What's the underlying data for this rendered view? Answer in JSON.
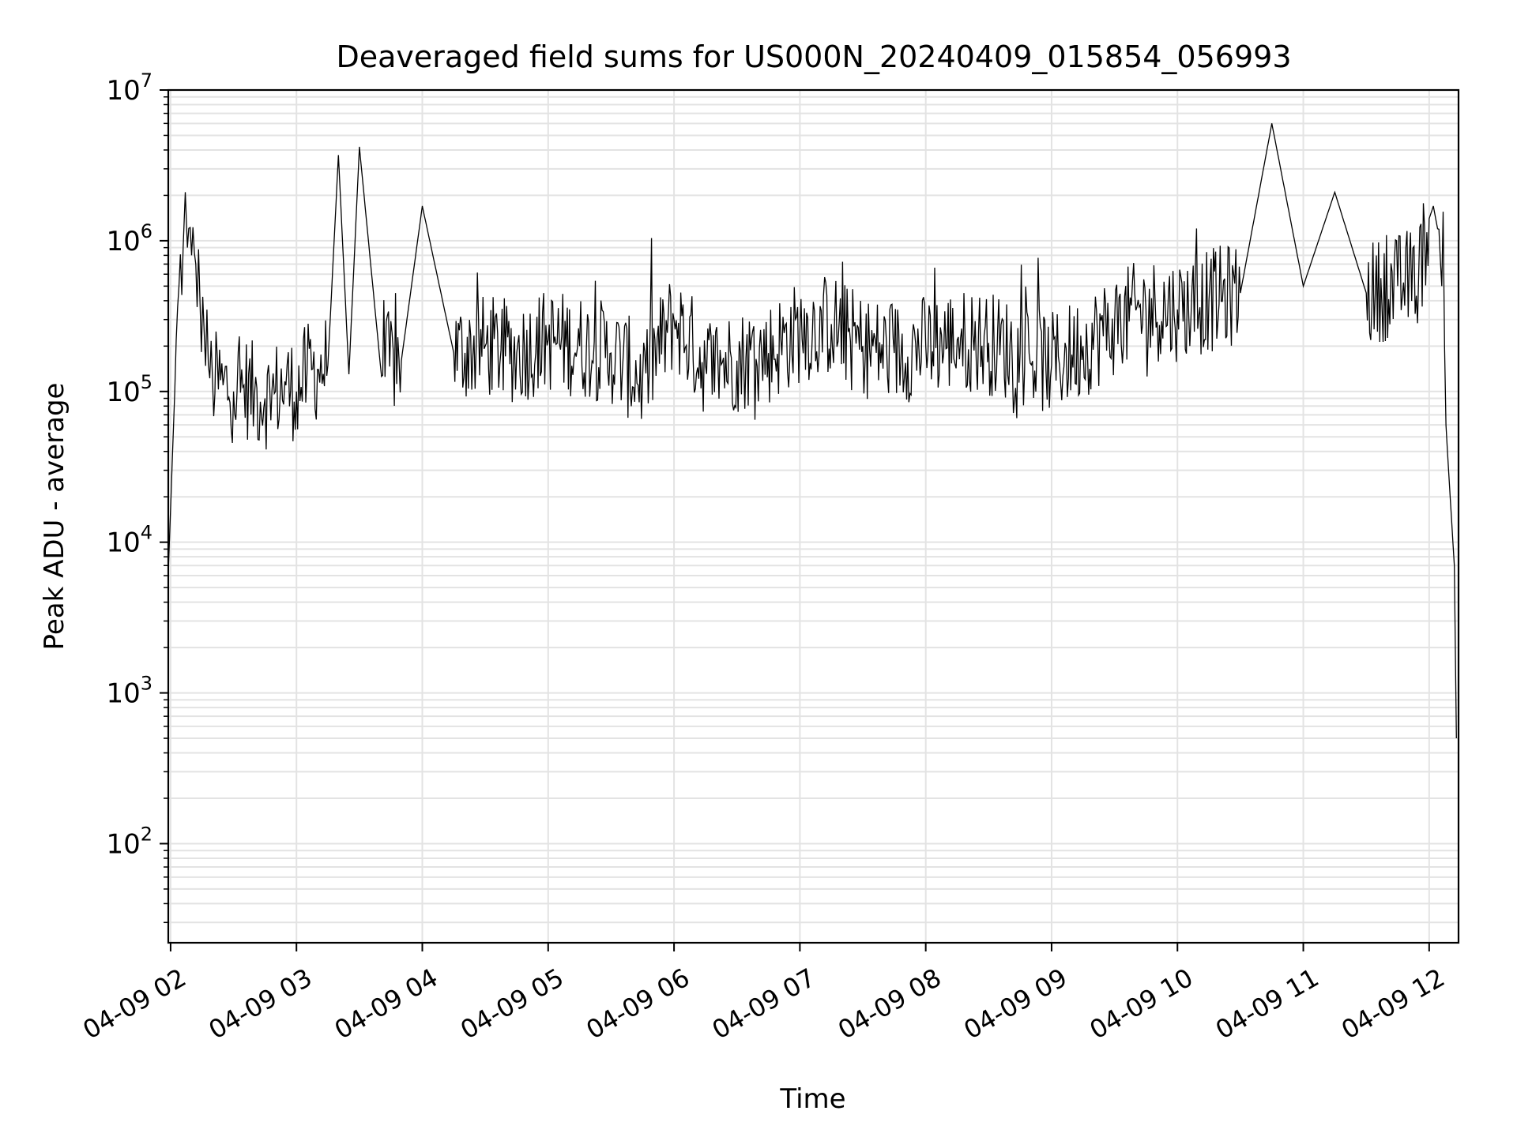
{
  "chart_data": {
    "type": "line",
    "title": "Deaveraged field sums for US000N_20240409_015854_056993",
    "xlabel": "Time",
    "ylabel": "Peak ADU - average",
    "xscale": "time",
    "yscale": "log",
    "xlim": [
      "2024-04-09T01:58:54",
      "2024-04-09T12:14:00"
    ],
    "ylim": [
      22,
      10000000
    ],
    "grid": true,
    "x_ticks": [
      {
        "time": "2024-04-09T02:00:00",
        "label": "04-09 02"
      },
      {
        "time": "2024-04-09T03:00:00",
        "label": "04-09 03"
      },
      {
        "time": "2024-04-09T04:00:00",
        "label": "04-09 04"
      },
      {
        "time": "2024-04-09T05:00:00",
        "label": "04-09 05"
      },
      {
        "time": "2024-04-09T06:00:00",
        "label": "04-09 06"
      },
      {
        "time": "2024-04-09T07:00:00",
        "label": "04-09 07"
      },
      {
        "time": "2024-04-09T08:00:00",
        "label": "04-09 08"
      },
      {
        "time": "2024-04-09T09:00:00",
        "label": "04-09 09"
      },
      {
        "time": "2024-04-09T10:00:00",
        "label": "04-09 10"
      },
      {
        "time": "2024-04-09T11:00:00",
        "label": "04-09 11"
      },
      {
        "time": "2024-04-09T12:00:00",
        "label": "04-09 12"
      }
    ],
    "y_ticks": [
      {
        "value": 100,
        "base": "10",
        "exp": "2"
      },
      {
        "value": 1000,
        "base": "10",
        "exp": "3"
      },
      {
        "value": 10000,
        "base": "10",
        "exp": "4"
      },
      {
        "value": 100000,
        "base": "10",
        "exp": "5"
      },
      {
        "value": 1000000,
        "base": "10",
        "exp": "6"
      },
      {
        "value": 10000000,
        "base": "10",
        "exp": "7"
      }
    ],
    "series_color": "#000000",
    "grid_color": "#e3e3e3",
    "series": [
      {
        "x": [
          "2024-04-09T01:59:00",
          "2024-04-09T02:02:00",
          "2024-04-09T02:04:00",
          "2024-04-09T02:06:00",
          "2024-04-09T02:07:00",
          "2024-04-09T02:08:00",
          "2024-04-09T02:10:00",
          "2024-04-09T02:12:00",
          "2024-04-09T02:14:00",
          "2024-04-09T02:16:00",
          "2024-04-09T02:18:00",
          "2024-04-09T02:20:00",
          "2024-04-09T02:25:00",
          "2024-04-09T02:30:00",
          "2024-04-09T02:35:00",
          "2024-04-09T02:40:00",
          "2024-04-09T02:45:00",
          "2024-04-09T02:50:00",
          "2024-04-09T02:55:00",
          "2024-04-09T03:00:00",
          "2024-04-09T03:05:00",
          "2024-04-09T03:10:00",
          "2024-04-09T03:15:00",
          "2024-04-09T03:20:00",
          "2024-04-09T03:25:00",
          "2024-04-09T03:30:00",
          "2024-04-09T03:40:00",
          "2024-04-09T03:50:00",
          "2024-04-09T04:00:00",
          "2024-04-09T04:15:00",
          "2024-04-09T04:30:00",
          "2024-04-09T04:45:00",
          "2024-04-09T05:00:00",
          "2024-04-09T05:15:00",
          "2024-04-09T05:30:00",
          "2024-04-09T05:45:00",
          "2024-04-09T06:00:00",
          "2024-04-09T06:15:00",
          "2024-04-09T06:30:00",
          "2024-04-09T06:45:00",
          "2024-04-09T07:00:00",
          "2024-04-09T07:15:00",
          "2024-04-09T07:30:00",
          "2024-04-09T07:45:00",
          "2024-04-09T08:00:00",
          "2024-04-09T08:15:00",
          "2024-04-09T08:30:00",
          "2024-04-09T08:45:00",
          "2024-04-09T09:00:00",
          "2024-04-09T09:15:00",
          "2024-04-09T09:30:00",
          "2024-04-09T09:45:00",
          "2024-04-09T10:00:00",
          "2024-04-09T10:15:00",
          "2024-04-09T10:30:00",
          "2024-04-09T10:45:00",
          "2024-04-09T11:00:00",
          "2024-04-09T11:15:00",
          "2024-04-09T11:30:00",
          "2024-04-09T11:45:00",
          "2024-04-09T11:55:00",
          "2024-04-09T12:00:00",
          "2024-04-09T12:02:00",
          "2024-04-09T12:04:00",
          "2024-04-09T12:06:00",
          "2024-04-09T12:08:00",
          "2024-04-09T12:10:00",
          "2024-04-09T12:12:00",
          "2024-04-09T12:13:00"
        ],
        "y": [
          7000,
          100000,
          500000,
          900000,
          2100000,
          900000,
          800000,
          700000,
          400000,
          250000,
          150000,
          120000,
          110000,
          100000,
          110000,
          95000,
          90000,
          100000,
          110000,
          100000,
          130000,
          140000,
          150000,
          3700000,
          130000,
          4200000,
          150000,
          160000,
          1700000,
          180000,
          200000,
          180000,
          220000,
          200000,
          180000,
          120000,
          300000,
          150000,
          160000,
          180000,
          250000,
          280000,
          200000,
          180000,
          200000,
          220000,
          210000,
          180000,
          150000,
          200000,
          280000,
          350000,
          350000,
          400000,
          450000,
          6000000,
          500000,
          2100000,
          450000,
          500000,
          600000,
          1400000,
          1700000,
          1200000,
          500000,
          60000,
          20000,
          7000,
          500
        ]
      }
    ]
  }
}
